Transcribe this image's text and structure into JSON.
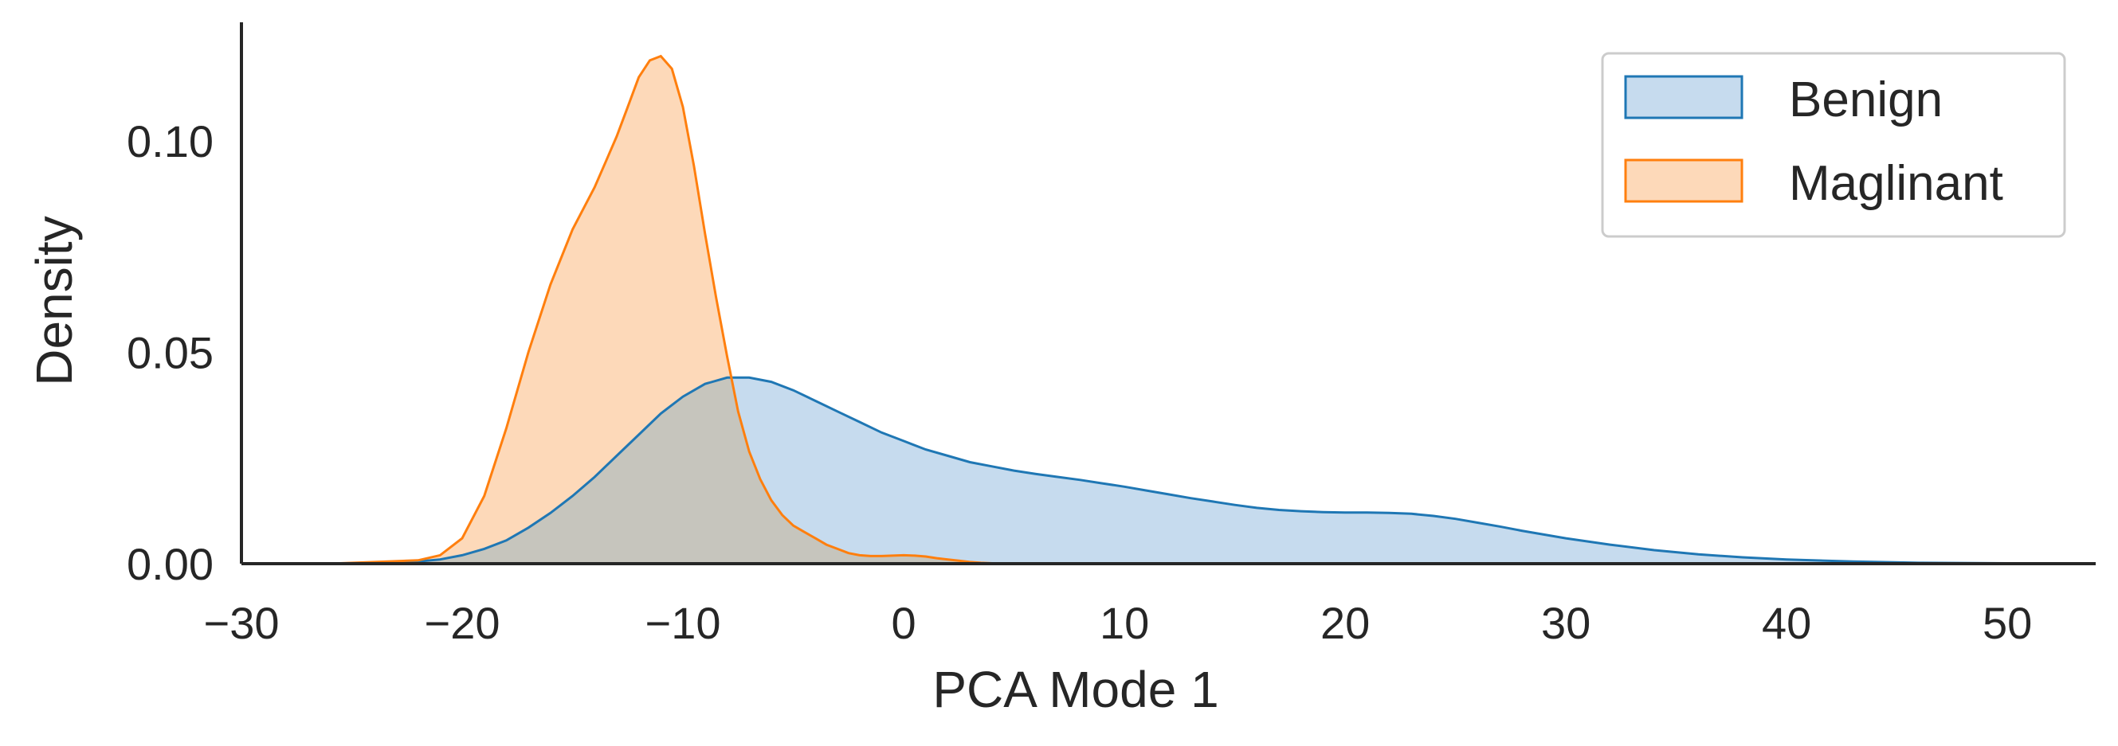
{
  "chart_data": {
    "type": "area",
    "xlabel": "PCA Mode 1",
    "ylabel": "Density",
    "xlim": [
      -30,
      54
    ],
    "ylim": [
      0,
      0.128
    ],
    "xticks": [
      -30,
      -20,
      -10,
      0,
      10,
      20,
      30,
      40,
      50
    ],
    "xtick_labels": [
      "−30",
      "−20",
      "−10",
      "0",
      "10",
      "20",
      "30",
      "40",
      "50"
    ],
    "yticks": [
      0,
      0.05,
      0.1
    ],
    "ytick_labels": [
      "0.00",
      "0.05",
      "0.10"
    ],
    "grid": false,
    "legend_position": "top-right",
    "series": [
      {
        "name": "Benign",
        "line_color": "#1f77b4",
        "fill_color": "#c6dbee",
        "x": [
          -26,
          -22,
          -21,
          -20,
          -19,
          -18,
          -17,
          -16,
          -15,
          -14,
          -13,
          -12,
          -11,
          -10,
          -9,
          -8,
          -7,
          -6,
          -5,
          -4,
          -3,
          -2,
          -1,
          0,
          1,
          2,
          3,
          4,
          5,
          6,
          7,
          8,
          9,
          10,
          11,
          12,
          13,
          14,
          15,
          16,
          17,
          18,
          19,
          20,
          21,
          22,
          23,
          24,
          25,
          26,
          27,
          28,
          30,
          32,
          34,
          36,
          38,
          40,
          43,
          46,
          50,
          54
        ],
        "y": [
          0.0,
          0.0005,
          0.001,
          0.002,
          0.0035,
          0.0055,
          0.0085,
          0.012,
          0.016,
          0.0205,
          0.0255,
          0.0305,
          0.0355,
          0.0395,
          0.0425,
          0.044,
          0.044,
          0.043,
          0.041,
          0.0385,
          0.036,
          0.0335,
          0.031,
          0.029,
          0.027,
          0.0255,
          0.024,
          0.023,
          0.022,
          0.0212,
          0.0205,
          0.0198,
          0.019,
          0.0182,
          0.0173,
          0.0164,
          0.0155,
          0.0147,
          0.0139,
          0.0132,
          0.0127,
          0.0124,
          0.0122,
          0.0121,
          0.0121,
          0.012,
          0.0118,
          0.0113,
          0.0106,
          0.0097,
          0.0088,
          0.0078,
          0.006,
          0.0045,
          0.0032,
          0.0022,
          0.0015,
          0.001,
          0.0005,
          0.0002,
          0.0001,
          0.0
        ]
      },
      {
        "name": "Maglinant",
        "line_color": "#ff7f0e",
        "fill_color": "#fdd9b9",
        "x": [
          -26,
          -22,
          -21,
          -20,
          -19,
          -18,
          -17,
          -16,
          -15,
          -14,
          -13.5,
          -13,
          -12.5,
          -12,
          -11.5,
          -11,
          -10.5,
          -10,
          -9.5,
          -9,
          -8.5,
          -8,
          -7.5,
          -7,
          -6.5,
          -6,
          -5.5,
          -5,
          -4.5,
          -4,
          -3.5,
          -3,
          -2.5,
          -2,
          -1.5,
          -1,
          -0.5,
          0,
          0.5,
          1,
          1.5,
          2,
          2.5,
          3,
          3.5,
          4,
          5
        ],
        "y": [
          0.0,
          0.0008,
          0.002,
          0.006,
          0.016,
          0.032,
          0.05,
          0.066,
          0.079,
          0.089,
          0.095,
          0.101,
          0.108,
          0.115,
          0.119,
          0.12,
          0.117,
          0.108,
          0.094,
          0.078,
          0.063,
          0.049,
          0.036,
          0.0265,
          0.02,
          0.015,
          0.0115,
          0.009,
          0.0075,
          0.006,
          0.0045,
          0.0035,
          0.0025,
          0.002,
          0.0018,
          0.0018,
          0.0019,
          0.002,
          0.0019,
          0.0017,
          0.0013,
          0.001,
          0.0007,
          0.0004,
          0.0002,
          0.0001,
          0.0
        ]
      }
    ],
    "overlap_color": "#c6c5bd"
  }
}
